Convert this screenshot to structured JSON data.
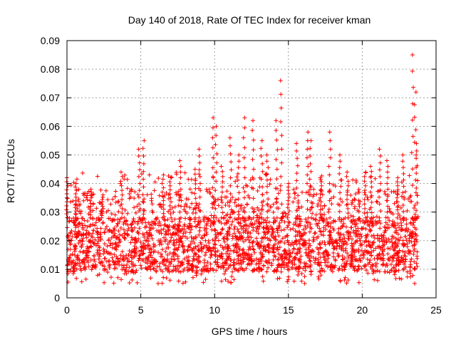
{
  "chart_data": {
    "type": "scatter",
    "title": "Day 140 of 2018, Rate Of TEC Index for receiver kman",
    "xlabel": "GPS time / hours",
    "ylabel": "ROTI / TECUs",
    "xlim": [
      0,
      25
    ],
    "ylim": [
      0,
      0.09
    ],
    "xticks": [
      0,
      5,
      10,
      15,
      20,
      25
    ],
    "xtick_labels": [
      "0",
      "5",
      "10",
      "15",
      "20",
      "25"
    ],
    "yticks": [
      0,
      0.01,
      0.02,
      0.03,
      0.04,
      0.05,
      0.06,
      0.07,
      0.08,
      0.09
    ],
    "ytick_labels": [
      "0",
      "0.01",
      "0.02",
      "0.03",
      "0.04",
      "0.05",
      "0.06",
      "0.07",
      "0.08",
      "0.09"
    ],
    "grid": true,
    "marker": "+",
    "color": "#ff0000",
    "data_coverage_hours": [
      0,
      23.8
    ],
    "baseline_range": [
      0.005,
      0.03
    ],
    "series": [
      {
        "name": "ROTI",
        "notable_peaks": [
          {
            "x": 0.0,
            "y": 0.042
          },
          {
            "x": 0.6,
            "y": 0.04
          },
          {
            "x": 1.6,
            "y": 0.038
          },
          {
            "x": 2.4,
            "y": 0.036
          },
          {
            "x": 3.7,
            "y": 0.044
          },
          {
            "x": 4.9,
            "y": 0.052
          },
          {
            "x": 5.2,
            "y": 0.055
          },
          {
            "x": 6.5,
            "y": 0.043
          },
          {
            "x": 7.0,
            "y": 0.042
          },
          {
            "x": 7.7,
            "y": 0.048
          },
          {
            "x": 8.7,
            "y": 0.045
          },
          {
            "x": 9.0,
            "y": 0.052
          },
          {
            "x": 9.9,
            "y": 0.063
          },
          {
            "x": 10.1,
            "y": 0.06
          },
          {
            "x": 10.5,
            "y": 0.046
          },
          {
            "x": 11.1,
            "y": 0.056
          },
          {
            "x": 11.6,
            "y": 0.05
          },
          {
            "x": 12.0,
            "y": 0.063
          },
          {
            "x": 12.6,
            "y": 0.062
          },
          {
            "x": 13.2,
            "y": 0.055
          },
          {
            "x": 13.6,
            "y": 0.05
          },
          {
            "x": 14.2,
            "y": 0.062
          },
          {
            "x": 14.5,
            "y": 0.076
          },
          {
            "x": 15.0,
            "y": 0.04
          },
          {
            "x": 15.6,
            "y": 0.054
          },
          {
            "x": 16.3,
            "y": 0.058
          },
          {
            "x": 16.5,
            "y": 0.055
          },
          {
            "x": 17.2,
            "y": 0.042
          },
          {
            "x": 17.8,
            "y": 0.058
          },
          {
            "x": 18.5,
            "y": 0.05
          },
          {
            "x": 19.0,
            "y": 0.044
          },
          {
            "x": 20.2,
            "y": 0.044
          },
          {
            "x": 20.6,
            "y": 0.046
          },
          {
            "x": 21.2,
            "y": 0.052
          },
          {
            "x": 21.7,
            "y": 0.048
          },
          {
            "x": 22.4,
            "y": 0.042
          },
          {
            "x": 22.8,
            "y": 0.05
          },
          {
            "x": 23.4,
            "y": 0.085
          },
          {
            "x": 23.6,
            "y": 0.072
          },
          {
            "x": 23.7,
            "y": 0.054
          }
        ]
      }
    ]
  }
}
